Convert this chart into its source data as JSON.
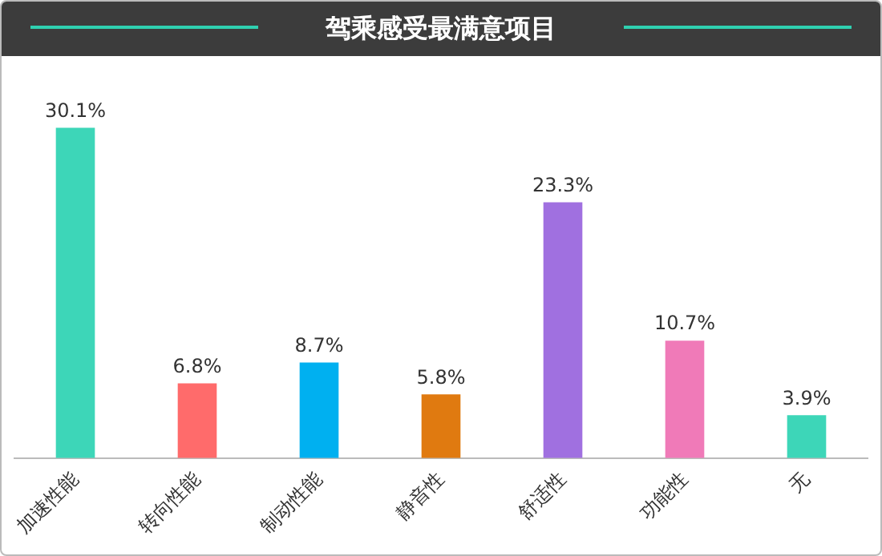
{
  "chart_data": {
    "type": "bar",
    "title": "驾乘感受最满意项目",
    "categories": [
      "加速性能",
      "转向性能",
      "制动性能",
      "静音性",
      "舒适性",
      "功能性",
      "无"
    ],
    "values": [
      30.1,
      6.8,
      8.7,
      5.8,
      23.3,
      10.7,
      3.9
    ],
    "colors": [
      "#3dd6b8",
      "#ff6b6b",
      "#00b0f0",
      "#e07a10",
      "#a070e0",
      "#f07ab8",
      "#3dd6b8"
    ],
    "value_labels": [
      "30.1%",
      "6.8%",
      "8.7%",
      "5.8%",
      "23.3%",
      "10.7%",
      "3.9%"
    ],
    "grid": false,
    "legend": false
  }
}
